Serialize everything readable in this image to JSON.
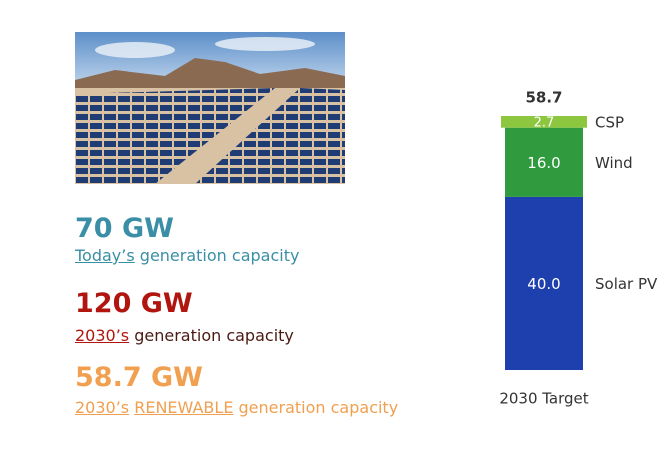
{
  "stats": [
    {
      "value": "70 GW",
      "color": "#3a8ea6",
      "caption": [
        {
          "text": "Today’s",
          "underline": true
        },
        {
          "text": " generation capacity",
          "underline": false
        }
      ]
    },
    {
      "value": "120 GW",
      "color": "#b0160f",
      "caption_color": "#4a1a12",
      "caption": [
        {
          "text": "2030’s",
          "underline": true
        },
        {
          "text": " generation capacity",
          "underline": false
        }
      ]
    },
    {
      "value": "58.7 GW",
      "color": "#f0a050",
      "caption": [
        {
          "text": "2030’s",
          "underline": true
        },
        {
          "text": " ",
          "underline": false
        },
        {
          "text": "RENEWABLE",
          "underline": true
        },
        {
          "text": " generation capacity",
          "underline": false
        }
      ]
    }
  ],
  "chart_data": {
    "type": "stacked_bar",
    "categories": [
      "2030 Target"
    ],
    "totals": [
      58.7
    ],
    "series": [
      {
        "name": "Solar PV",
        "color": "#1e3fae",
        "values": [
          40.0
        ],
        "value_labels": [
          "40.0"
        ]
      },
      {
        "name": "Wind",
        "color": "#2f9a3e",
        "values": [
          16.0
        ],
        "value_labels": [
          "16.0"
        ]
      },
      {
        "name": "CSP",
        "color": "#8dc63f",
        "values": [
          2.7
        ],
        "value_labels": [
          "2.7"
        ]
      }
    ]
  }
}
